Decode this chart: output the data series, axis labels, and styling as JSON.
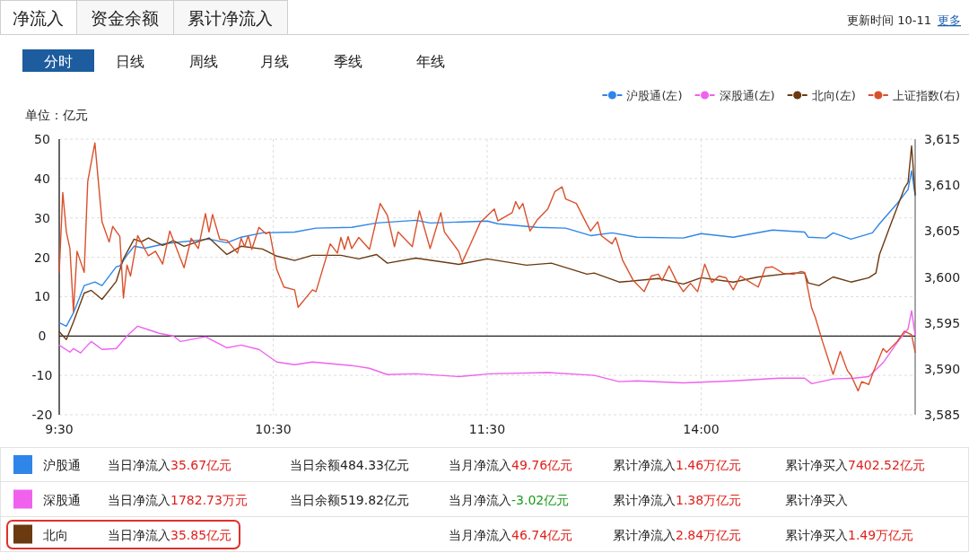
{
  "chart_data": {
    "type": "line",
    "ylabel": "单位：亿元",
    "categories": [
      "9:30",
      null,
      null,
      null,
      null,
      null,
      null,
      null,
      null,
      null,
      null,
      null,
      null,
      null,
      null,
      null,
      null,
      null,
      null,
      null,
      null,
      null,
      null,
      null,
      null,
      null,
      null,
      null,
      null,
      null,
      null,
      null,
      null,
      null,
      null,
      null,
      null,
      null,
      null,
      null,
      null,
      null,
      null,
      null,
      null,
      null,
      null,
      null,
      null,
      null,
      null,
      null,
      null,
      null,
      null,
      null,
      null,
      null,
      null,
      null,
      "10:30",
      null,
      null,
      null,
      null,
      null,
      null,
      null,
      null,
      null,
      null,
      null,
      null,
      null,
      null,
      null,
      null,
      null,
      null,
      null,
      null,
      null,
      null,
      null,
      null,
      null,
      null,
      null,
      null,
      null,
      null,
      null,
      null,
      null,
      null,
      null,
      null,
      null,
      null,
      null,
      null,
      null,
      null,
      null,
      null,
      null,
      null,
      null,
      null,
      null,
      null,
      null,
      null,
      null,
      null,
      null,
      null,
      null,
      null,
      null,
      "11:30",
      null,
      null,
      null,
      null,
      null,
      null,
      null,
      null,
      null,
      null,
      null,
      null,
      null,
      null,
      null,
      null,
      null,
      null,
      null,
      null,
      null,
      null,
      null,
      null,
      null,
      null,
      null,
      null,
      null,
      null,
      null,
      null,
      null,
      null,
      null,
      null,
      null,
      null,
      null,
      null,
      null,
      null,
      null,
      null,
      null,
      null,
      null,
      null,
      null,
      null,
      null,
      null,
      null,
      null,
      null,
      null,
      null,
      null,
      null,
      "14:00",
      null,
      null,
      null,
      null,
      null,
      null,
      null,
      null,
      null,
      null,
      null,
      null,
      null,
      null,
      null,
      null,
      null,
      null,
      null,
      null,
      null,
      null,
      null,
      null,
      null,
      null,
      null,
      null,
      null,
      null,
      null,
      null,
      null,
      null,
      null,
      null,
      null,
      null,
      null,
      null,
      null,
      null,
      null,
      null,
      null,
      null,
      null,
      null,
      null,
      null,
      null,
      null,
      null,
      null,
      null,
      null,
      null,
      null,
      null,
      null
    ],
    "ylim": [
      -20,
      50
    ],
    "yticks": [
      -20,
      -10,
      0,
      10,
      20,
      30,
      40,
      50
    ],
    "y2lim": [
      3585,
      3615
    ],
    "y2ticks": [
      {
        "value": 3585,
        "label": "3,585"
      },
      {
        "value": 3590,
        "label": "3,590"
      },
      {
        "value": 3595,
        "label": "3,595"
      },
      {
        "value": 3600,
        "label": "3,600"
      },
      {
        "value": 3605,
        "label": "3,605"
      },
      {
        "value": 3610,
        "label": "3,610"
      },
      {
        "value": 3615,
        "label": "3,615"
      }
    ],
    "grid": true,
    "legend": "top right",
    "marker": "none",
    "line_style": "solid",
    "ref_lines": [
      {
        "axis": "y",
        "value": 0,
        "color": "#222222"
      }
    ],
    "series": [
      {
        "name": "沪股通(左)",
        "color": "#2f86e8",
        "values": [
          3.4,
          null,
          2.5,
          null,
          5.9,
          null,
          null,
          12.8,
          null,
          null,
          13.7,
          null,
          12.8,
          null,
          null,
          null,
          17.6,
          17.8,
          null,
          20.5,
          null,
          22.8,
          null,
          null,
          22.3,
          null,
          null,
          null,
          null,
          null,
          23.5,
          null,
          null,
          null,
          null,
          null,
          null,
          null,
          null,
          null,
          null,
          null,
          24.6,
          null,
          null,
          null,
          null,
          23.7,
          null,
          null,
          null,
          25.1,
          null,
          null,
          null,
          null,
          null,
          26.2,
          null,
          null,
          null,
          null,
          null,
          null,
          null,
          null,
          26.4,
          null,
          null,
          null,
          null,
          null,
          27.4,
          null,
          null,
          null,
          null,
          null,
          null,
          null,
          null,
          null,
          27.6,
          null,
          null,
          null,
          null,
          null,
          null,
          28.7,
          null,
          null,
          null,
          null,
          null,
          null,
          null,
          null,
          null,
          null,
          29.4,
          null,
          null,
          null,
          28.7,
          null,
          null,
          null,
          null,
          null,
          null,
          null,
          null,
          null,
          null,
          null,
          null,
          null,
          null,
          null,
          29.2,
          null,
          null,
          28.5,
          null,
          null,
          null,
          null,
          null,
          null,
          null,
          null,
          null,
          null,
          27.6,
          null,
          null,
          null,
          null,
          null,
          null,
          null,
          27.4,
          null,
          null,
          null,
          null,
          null,
          null,
          25.5,
          null,
          null,
          null,
          null,
          null,
          26.2,
          null,
          null,
          null,
          null,
          null,
          null,
          25.1,
          null,
          null,
          null,
          null,
          null,
          null,
          null,
          null,
          null,
          null,
          null,
          null,
          24.9,
          null,
          null,
          null,
          null,
          26.0,
          null,
          null,
          null,
          null,
          null,
          null,
          null,
          null,
          25.1,
          null,
          null,
          null,
          null,
          null,
          null,
          null,
          null,
          null,
          null,
          26.9,
          null,
          null,
          null,
          null,
          null,
          null,
          null,
          null,
          26.4,
          25.1,
          null,
          null,
          null,
          null,
          24.9,
          null,
          26.2,
          null,
          null,
          null,
          null,
          24.6,
          null,
          null,
          null,
          null,
          null,
          26.2,
          null,
          28.5,
          null,
          null,
          null,
          null,
          33.7,
          null,
          null,
          37.2,
          42.0,
          35.7
        ]
      },
      {
        "name": "深股通(左)",
        "color": "#f062ee",
        "values": [
          -2.3,
          null,
          null,
          -4.1,
          -3.2,
          null,
          -4.3,
          null,
          -2.3,
          -1.4,
          null,
          null,
          -3.4,
          null,
          null,
          null,
          -3.2,
          null,
          null,
          0,
          null,
          null,
          2.5,
          null,
          null,
          1.6,
          null,
          null,
          0.7,
          null,
          null,
          null,
          0,
          null,
          -1.4,
          null,
          null,
          null,
          null,
          null,
          null,
          -0.2,
          null,
          null,
          null,
          null,
          null,
          -3.0,
          null,
          null,
          null,
          -2.3,
          null,
          null,
          null,
          null,
          -3.4,
          null,
          null,
          null,
          null,
          -6.6,
          null,
          null,
          null,
          null,
          -7.3,
          null,
          null,
          null,
          null,
          -6.6,
          null,
          null,
          null,
          null,
          null,
          null,
          null,
          null,
          null,
          null,
          -7.5,
          null,
          null,
          null,
          null,
          -8.2,
          null,
          null,
          null,
          null,
          -9.8,
          null,
          null,
          null,
          null,
          null,
          null,
          null,
          -9.6,
          null,
          null,
          null,
          null,
          null,
          null,
          null,
          null,
          null,
          null,
          null,
          -10.3,
          null,
          null,
          null,
          null,
          null,
          null,
          null,
          null,
          -9.6,
          null,
          null,
          null,
          null,
          null,
          null,
          null,
          null,
          null,
          null,
          null,
          null,
          null,
          null,
          null,
          -9.3,
          null,
          null,
          null,
          null,
          null,
          null,
          null,
          null,
          null,
          null,
          null,
          null,
          -10.0,
          null,
          null,
          null,
          null,
          null,
          null,
          -11.6,
          null,
          null,
          null,
          null,
          -11.4,
          null,
          null,
          null,
          null,
          null,
          null,
          null,
          null,
          null,
          null,
          null,
          null,
          -11.9,
          null,
          null,
          null,
          null,
          null,
          null,
          null,
          null,
          null,
          null,
          null,
          null,
          null,
          -11.4,
          null,
          null,
          null,
          null,
          null,
          null,
          null,
          null,
          null,
          null,
          null,
          null,
          -10.7,
          null,
          null,
          null,
          null,
          null,
          null,
          -10.7,
          null,
          -12.1,
          null,
          null,
          null,
          null,
          null,
          -10.9,
          null,
          null,
          null,
          null,
          null,
          -10.7,
          null,
          null,
          null,
          -10.3,
          null,
          null,
          null,
          -6.8,
          null,
          null,
          null,
          -1.6,
          null,
          null,
          1.8,
          6.4,
          0.2
        ]
      },
      {
        "name": "北向(左)",
        "color": "#6b3a10",
        "values": [
          1.1,
          null,
          -0.9,
          null,
          3.6,
          null,
          null,
          10.9,
          null,
          11.6,
          null,
          null,
          9.3,
          null,
          null,
          null,
          13.9,
          null,
          19.6,
          null,
          null,
          24.6,
          null,
          23.9,
          null,
          24.9,
          null,
          null,
          null,
          23.0,
          null,
          null,
          24.2,
          null,
          null,
          22.8,
          null,
          null,
          null,
          null,
          null,
          null,
          24.9,
          null,
          null,
          null,
          null,
          20.7,
          null,
          null,
          null,
          22.8,
          null,
          null,
          null,
          null,
          null,
          22.1,
          null,
          null,
          null,
          20.3,
          null,
          null,
          null,
          null,
          19.2,
          null,
          null,
          null,
          null,
          20.5,
          null,
          null,
          null,
          null,
          null,
          null,
          null,
          20.5,
          null,
          null,
          null,
          null,
          19.6,
          null,
          null,
          null,
          null,
          20.7,
          null,
          null,
          18.5,
          null,
          null,
          null,
          null,
          null,
          null,
          null,
          19.8,
          null,
          null,
          null,
          null,
          null,
          null,
          null,
          null,
          null,
          null,
          null,
          18.2,
          null,
          null,
          null,
          null,
          null,
          null,
          null,
          19.6,
          null,
          null,
          null,
          null,
          null,
          null,
          null,
          null,
          null,
          null,
          18.0,
          null,
          null,
          null,
          null,
          null,
          null,
          18.5,
          null,
          null,
          null,
          null,
          null,
          null,
          null,
          null,
          null,
          15.7,
          null,
          16.0,
          null,
          null,
          null,
          null,
          null,
          null,
          13.7,
          null,
          null,
          13.9,
          null,
          null,
          null,
          null,
          null,
          null,
          null,
          14.6,
          null,
          null,
          null,
          null,
          null,
          null,
          13.2,
          null,
          null,
          null,
          null,
          14.8,
          null,
          null,
          null,
          null,
          null,
          null,
          null,
          null,
          13.7,
          null,
          null,
          null,
          null,
          null,
          null,
          15.0,
          null,
          null,
          null,
          null,
          null,
          null,
          null,
          null,
          null,
          16.0,
          null,
          null,
          16.0,
          13.5,
          null,
          null,
          12.8,
          null,
          null,
          null,
          15.0,
          null,
          null,
          null,
          null,
          13.7,
          null,
          null,
          null,
          null,
          14.8,
          null,
          16.0,
          20.7,
          null,
          null,
          28.0,
          null,
          null,
          null,
          37.6,
          39.0,
          48.3,
          35.9
        ]
      },
      {
        "name": "上证指数(右)",
        "color": "#d9512c",
        "axis": "y2",
        "values": [
          3600.5,
          3609.2,
          3604.9,
          3603.1,
          3596.2,
          3602.8,
          null,
          3600.5,
          3610.4,
          null,
          3614.6,
          null,
          3606.0,
          null,
          3603.8,
          3605.5,
          null,
          3604.4,
          3597.7,
          3601.3,
          3600.1,
          null,
          3604.5,
          null,
          null,
          3602.3,
          null,
          3602.8,
          null,
          3601.4,
          null,
          3605.0,
          null,
          null,
          null,
          3601.0,
          null,
          3604.2,
          null,
          3603.1,
          null,
          3606.9,
          3604.9,
          3606.8,
          null,
          3604.1,
          null,
          3604.0,
          null,
          null,
          3602.6,
          3604.2,
          3603.3,
          3604.5,
          3603.0,
          null,
          3605.4,
          null,
          3604.7,
          3604.9,
          null,
          3600.8,
          null,
          3598.9,
          null,
          null,
          3598.6,
          3596.7,
          null,
          null,
          null,
          3598.6,
          3598.4,
          null,
          null,
          null,
          3603.6,
          null,
          3602.6,
          3604.3,
          3603.0,
          3604.4,
          3603.1,
          null,
          3604.3,
          null,
          null,
          3603.0,
          null,
          null,
          3608.0,
          null,
          3606.7,
          null,
          3603.3,
          3604.9,
          null,
          null,
          null,
          3603.3,
          null,
          3607.2,
          null,
          null,
          3603.1,
          null,
          null,
          3607.0,
          3604.9,
          null,
          null,
          null,
          3602.8,
          3601.6,
          null,
          3603.3,
          null,
          null,
          3605.9,
          null,
          null,
          null,
          3607.4,
          3606.1,
          null,
          null,
          null,
          3607.0,
          3608.2,
          3607.4,
          3608.0,
          null,
          3605.0,
          null,
          3606.2,
          null,
          null,
          3607.4,
          null,
          3609.3,
          null,
          3609.8,
          3608.5,
          null,
          null,
          3608.0,
          null,
          null,
          3605.7,
          3605.0,
          null,
          3606.0,
          3604.5,
          null,
          null,
          3603.6,
          3604.3,
          null,
          3601.8,
          null,
          null,
          3599.6,
          null,
          null,
          3598.4,
          null,
          3600.1,
          null,
          3600.3,
          3599.6,
          null,
          3601.2,
          null,
          3599.6,
          null,
          3598.4,
          null,
          3599.3,
          null,
          3598.4,
          null,
          3601.4,
          null,
          3599.4,
          null,
          3600.1,
          null,
          3599.9,
          null,
          3598.6,
          null,
          3600.1,
          null,
          3599.6,
          null,
          null,
          3598.9,
          null,
          3601.0,
          null,
          3601.1,
          null,
          null,
          3600.4,
          null,
          null,
          3600.3,
          null,
          3600.6,
          3600.5,
          null,
          3596.6,
          3595.6,
          null,
          3593.0,
          null,
          null,
          3589.4,
          null,
          3591.9,
          null,
          3589.8,
          3589.3,
          null,
          3587.6,
          3588.6,
          null,
          3588.3,
          3589.4,
          null,
          null,
          3592.2,
          3591.8,
          null,
          null,
          3593.0,
          null,
          3594.1,
          null,
          3593.7,
          3591.8
        ]
      }
    ],
    "annotations": [
      "净流入",
      "资金余额",
      "累计净流入",
      "更新时间 10-11",
      "更多",
      "分时",
      "日线",
      "周线",
      "月线",
      "季线",
      "年线",
      "沪股通",
      "当日净流入",
      "35.67亿元",
      "当日余额484.33亿元",
      "当月净流入",
      "49.76亿元",
      "累计净流入",
      "1.46万亿元",
      "累计净买入",
      "7402.52亿元",
      "深股通",
      "当日净流入",
      "1782.73万元",
      "当日余额519.82亿元",
      "当月净流入",
      "-3.02亿元",
      "累计净流入",
      "1.38万亿元",
      "累计净买入",
      "北向",
      "当日净流入",
      "35.85亿元",
      "当月净流入",
      "46.74亿元",
      "累计净流入",
      "2.84万亿元",
      "累计净买入",
      "1.49万亿元"
    ]
  }
}
